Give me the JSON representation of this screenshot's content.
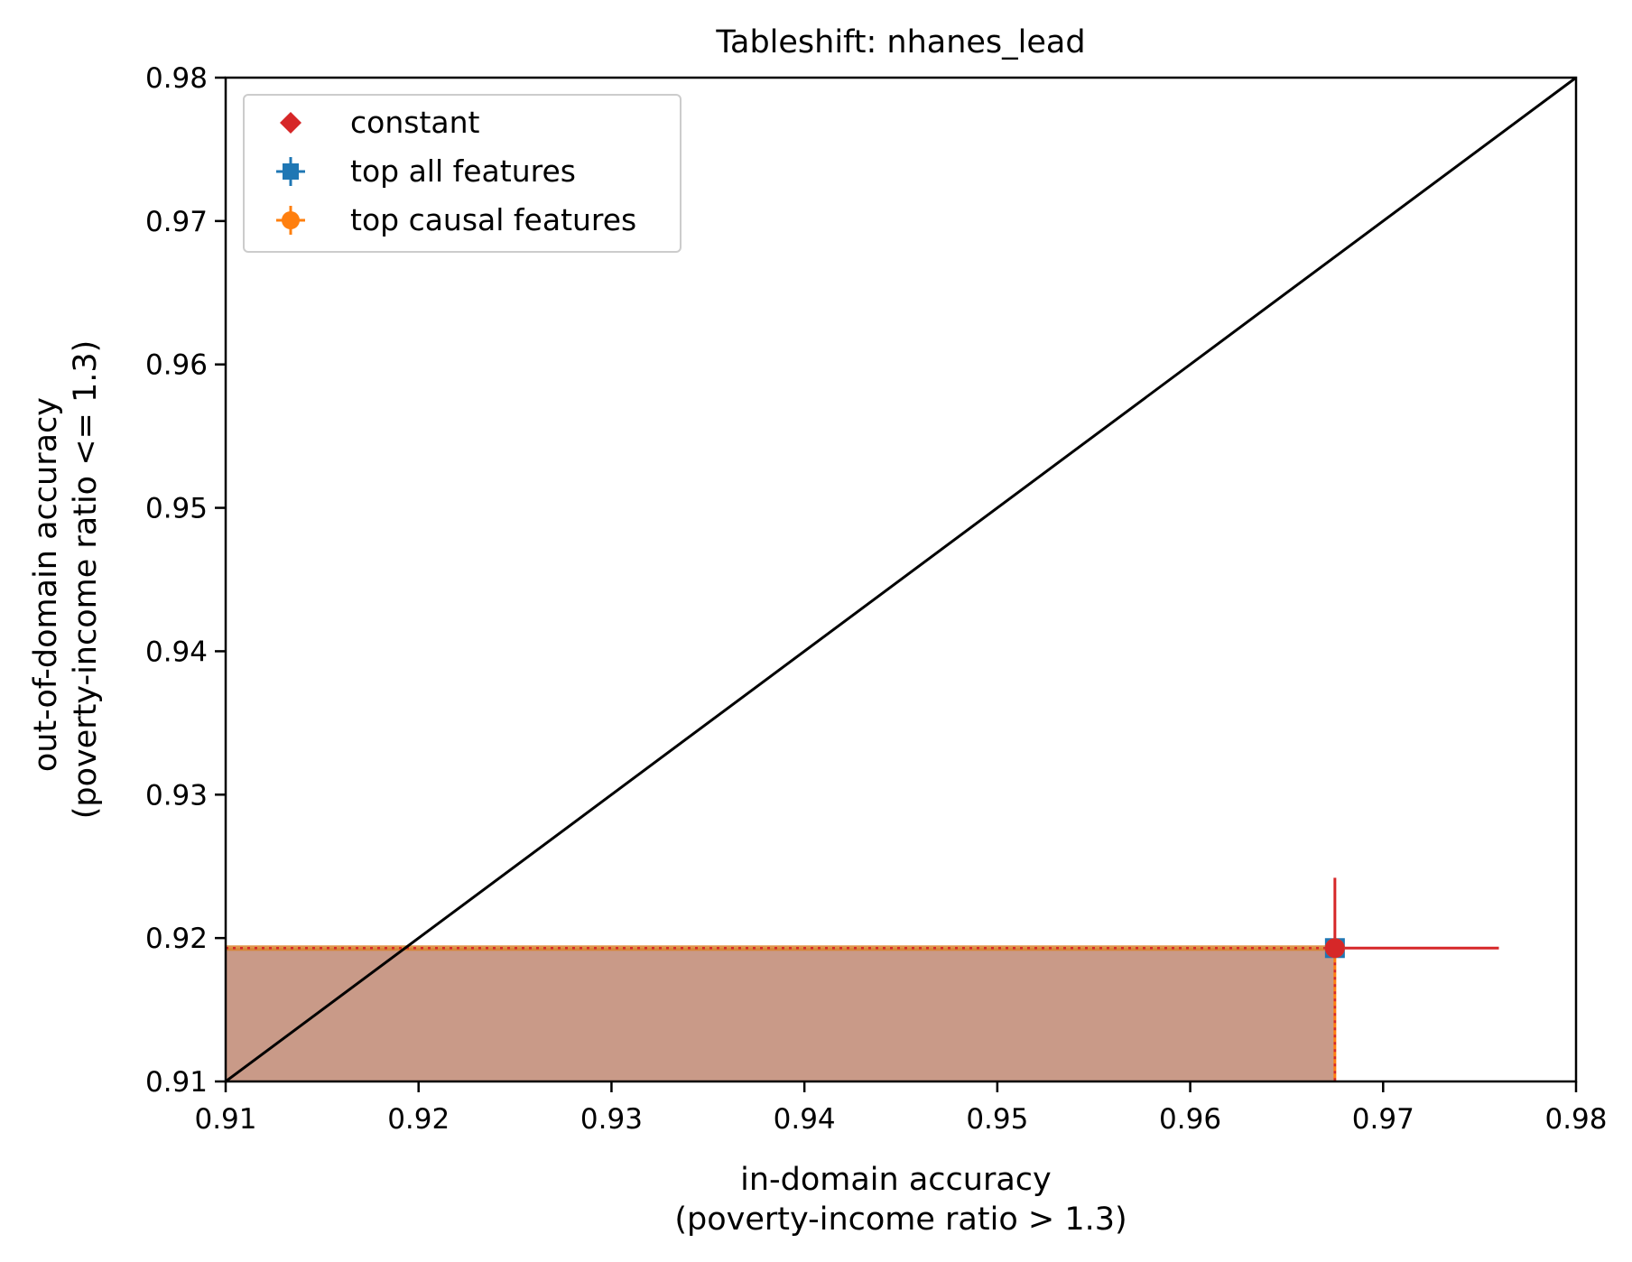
{
  "chart_data": {
    "type": "scatter",
    "title": "Tableshift: nhanes_lead",
    "xlabel": [
      "in-domain accuracy",
      "(poverty-income ratio > 1.3)"
    ],
    "ylabel": [
      "out-of-domain accuracy",
      "(poverty-income ratio <= 1.3)"
    ],
    "xlim": [
      0.91,
      0.98
    ],
    "ylim": [
      0.91,
      0.98
    ],
    "x_ticks": [
      "0.91",
      "0.92",
      "0.93",
      "0.94",
      "0.95",
      "0.96",
      "0.97",
      "0.98"
    ],
    "y_ticks": [
      "0.91",
      "0.92",
      "0.93",
      "0.94",
      "0.95",
      "0.96",
      "0.97",
      "0.98"
    ],
    "grid": false,
    "legend_position": "top-left",
    "diagonal": {
      "from": [
        0.91,
        0.91
      ],
      "to": [
        0.98,
        0.98
      ],
      "color": "#000000"
    },
    "series": [
      {
        "name": "constant",
        "marker": "diamond",
        "color": "#d62728",
        "x": 0.9675,
        "y": 0.9193,
        "xerr": [
          0.0,
          0.0085
        ],
        "yerr": [
          0.0,
          0.0049
        ]
      },
      {
        "name": "top all features",
        "marker": "square",
        "color": "#1f77b4",
        "x": 0.9675,
        "y": 0.9193
      },
      {
        "name": "top causal features",
        "marker": "circle",
        "color": "#ff7f0e",
        "x": 0.9675,
        "y": 0.9193
      }
    ],
    "shaded_region": {
      "x": [
        0.91,
        0.9675
      ],
      "y": [
        0.91,
        0.9193
      ],
      "color": "#c99a88"
    }
  }
}
